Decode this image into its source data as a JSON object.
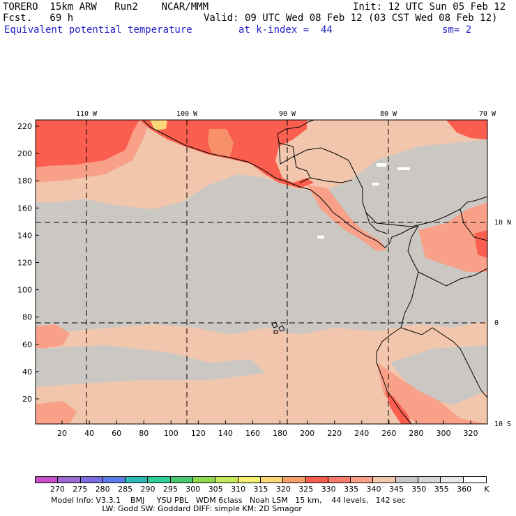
{
  "header": {
    "model_label": "TORERO  15km ARW   Run2    NCAR/MMM",
    "init": "Init: 12 UTC Sun 05 Feb 12",
    "forecast": "Fcst.   69 h",
    "valid": "Valid: 09 UTC Wed 08 Feb 12 (03 CST Wed 08 Feb 12)",
    "field": "Equivalent potential temperature",
    "level": "at k-index =  44",
    "smoothing": "sm= 2"
  },
  "map": {
    "lon_labels": [
      "110 W",
      "100 W",
      "90 W",
      "80 W",
      "70 W"
    ],
    "lat_labels": [
      "10 N",
      "0",
      "10 S"
    ],
    "y_ticks": [
      "220",
      "200",
      "180",
      "160",
      "140",
      "120",
      "100",
      "80",
      "60",
      "40",
      "20"
    ],
    "x_ticks": [
      "20",
      "40",
      "60",
      "80",
      "100",
      "120",
      "140",
      "160",
      "180",
      "200",
      "220",
      "240",
      "260",
      "280",
      "300",
      "320"
    ],
    "colors": {
      "gray": "#cbc8c4",
      "peach": "#f2c6ac",
      "salmon": "#f8a088",
      "red": "#fa5e4e",
      "orange": "#f8906a",
      "yellow": "#fbd77a"
    }
  },
  "colorbar": {
    "labels": [
      "270",
      "275",
      "280",
      "285",
      "290",
      "295",
      "300",
      "305",
      "310",
      "315",
      "320",
      "325",
      "330",
      "335",
      "340",
      "345",
      "350",
      "355",
      "360",
      "K"
    ],
    "colors": [
      "#c94ec9",
      "#9c6ad2",
      "#7a6ee0",
      "#5a7de8",
      "#30b8b8",
      "#2fd0a0",
      "#4ec870",
      "#90d850",
      "#c8e860",
      "#f4f070",
      "#fbd77a",
      "#f8a06a",
      "#fa5e4e",
      "#f87c6c",
      "#f8a088",
      "#f2c6ac",
      "#cbc8c4",
      "#d8d8d8",
      "#e8e8e8",
      "#ffffff"
    ]
  },
  "footer": {
    "line1": "Model Info: V3.3.1    BMJ     YSU PBL   WDM 6class   Noah LSM   15 km,    44 levels,   142 sec",
    "line2": "                     LW: Godd SW: Goddard DIFF: simple KM: 2D Smagor"
  }
}
